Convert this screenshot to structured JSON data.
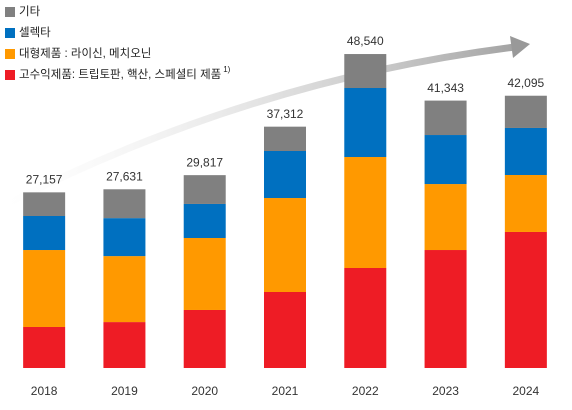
{
  "chart_data": {
    "type": "stacked-bar",
    "categories": [
      "2018",
      "2019",
      "2020",
      "2021",
      "2022",
      "2023",
      "2024"
    ],
    "series": [
      {
        "name": "고수익제품: 트립토판, 핵산, 스페셜티 제품",
        "color": "#ee1c25",
        "values": [
          6340,
          7100,
          8970,
          11750,
          15460,
          18240,
          21030
        ]
      },
      {
        "name": "대형제품 : 라이신, 메치오닌",
        "color": "#ff9900",
        "values": [
          11900,
          10200,
          11130,
          14530,
          17160,
          10200,
          8810
        ]
      },
      {
        "name": "셀렉타",
        "color": "#0070c0",
        "values": [
          5260,
          5870,
          5260,
          7270,
          10670,
          7580,
          7270
        ]
      },
      {
        "name": "기타",
        "color": "#808080",
        "values": [
          3657,
          4461,
          4457,
          3762,
          5250,
          5323,
          4985
        ]
      }
    ],
    "legend_note": "1)",
    "totals": [
      27157,
      27631,
      29817,
      37312,
      48540,
      41343,
      42095
    ],
    "total_labels": [
      "27,157",
      "27,631",
      "29,817",
      "37,312",
      "48,540",
      "41,343",
      "42,095"
    ],
    "ylim": [
      0,
      50000
    ]
  }
}
